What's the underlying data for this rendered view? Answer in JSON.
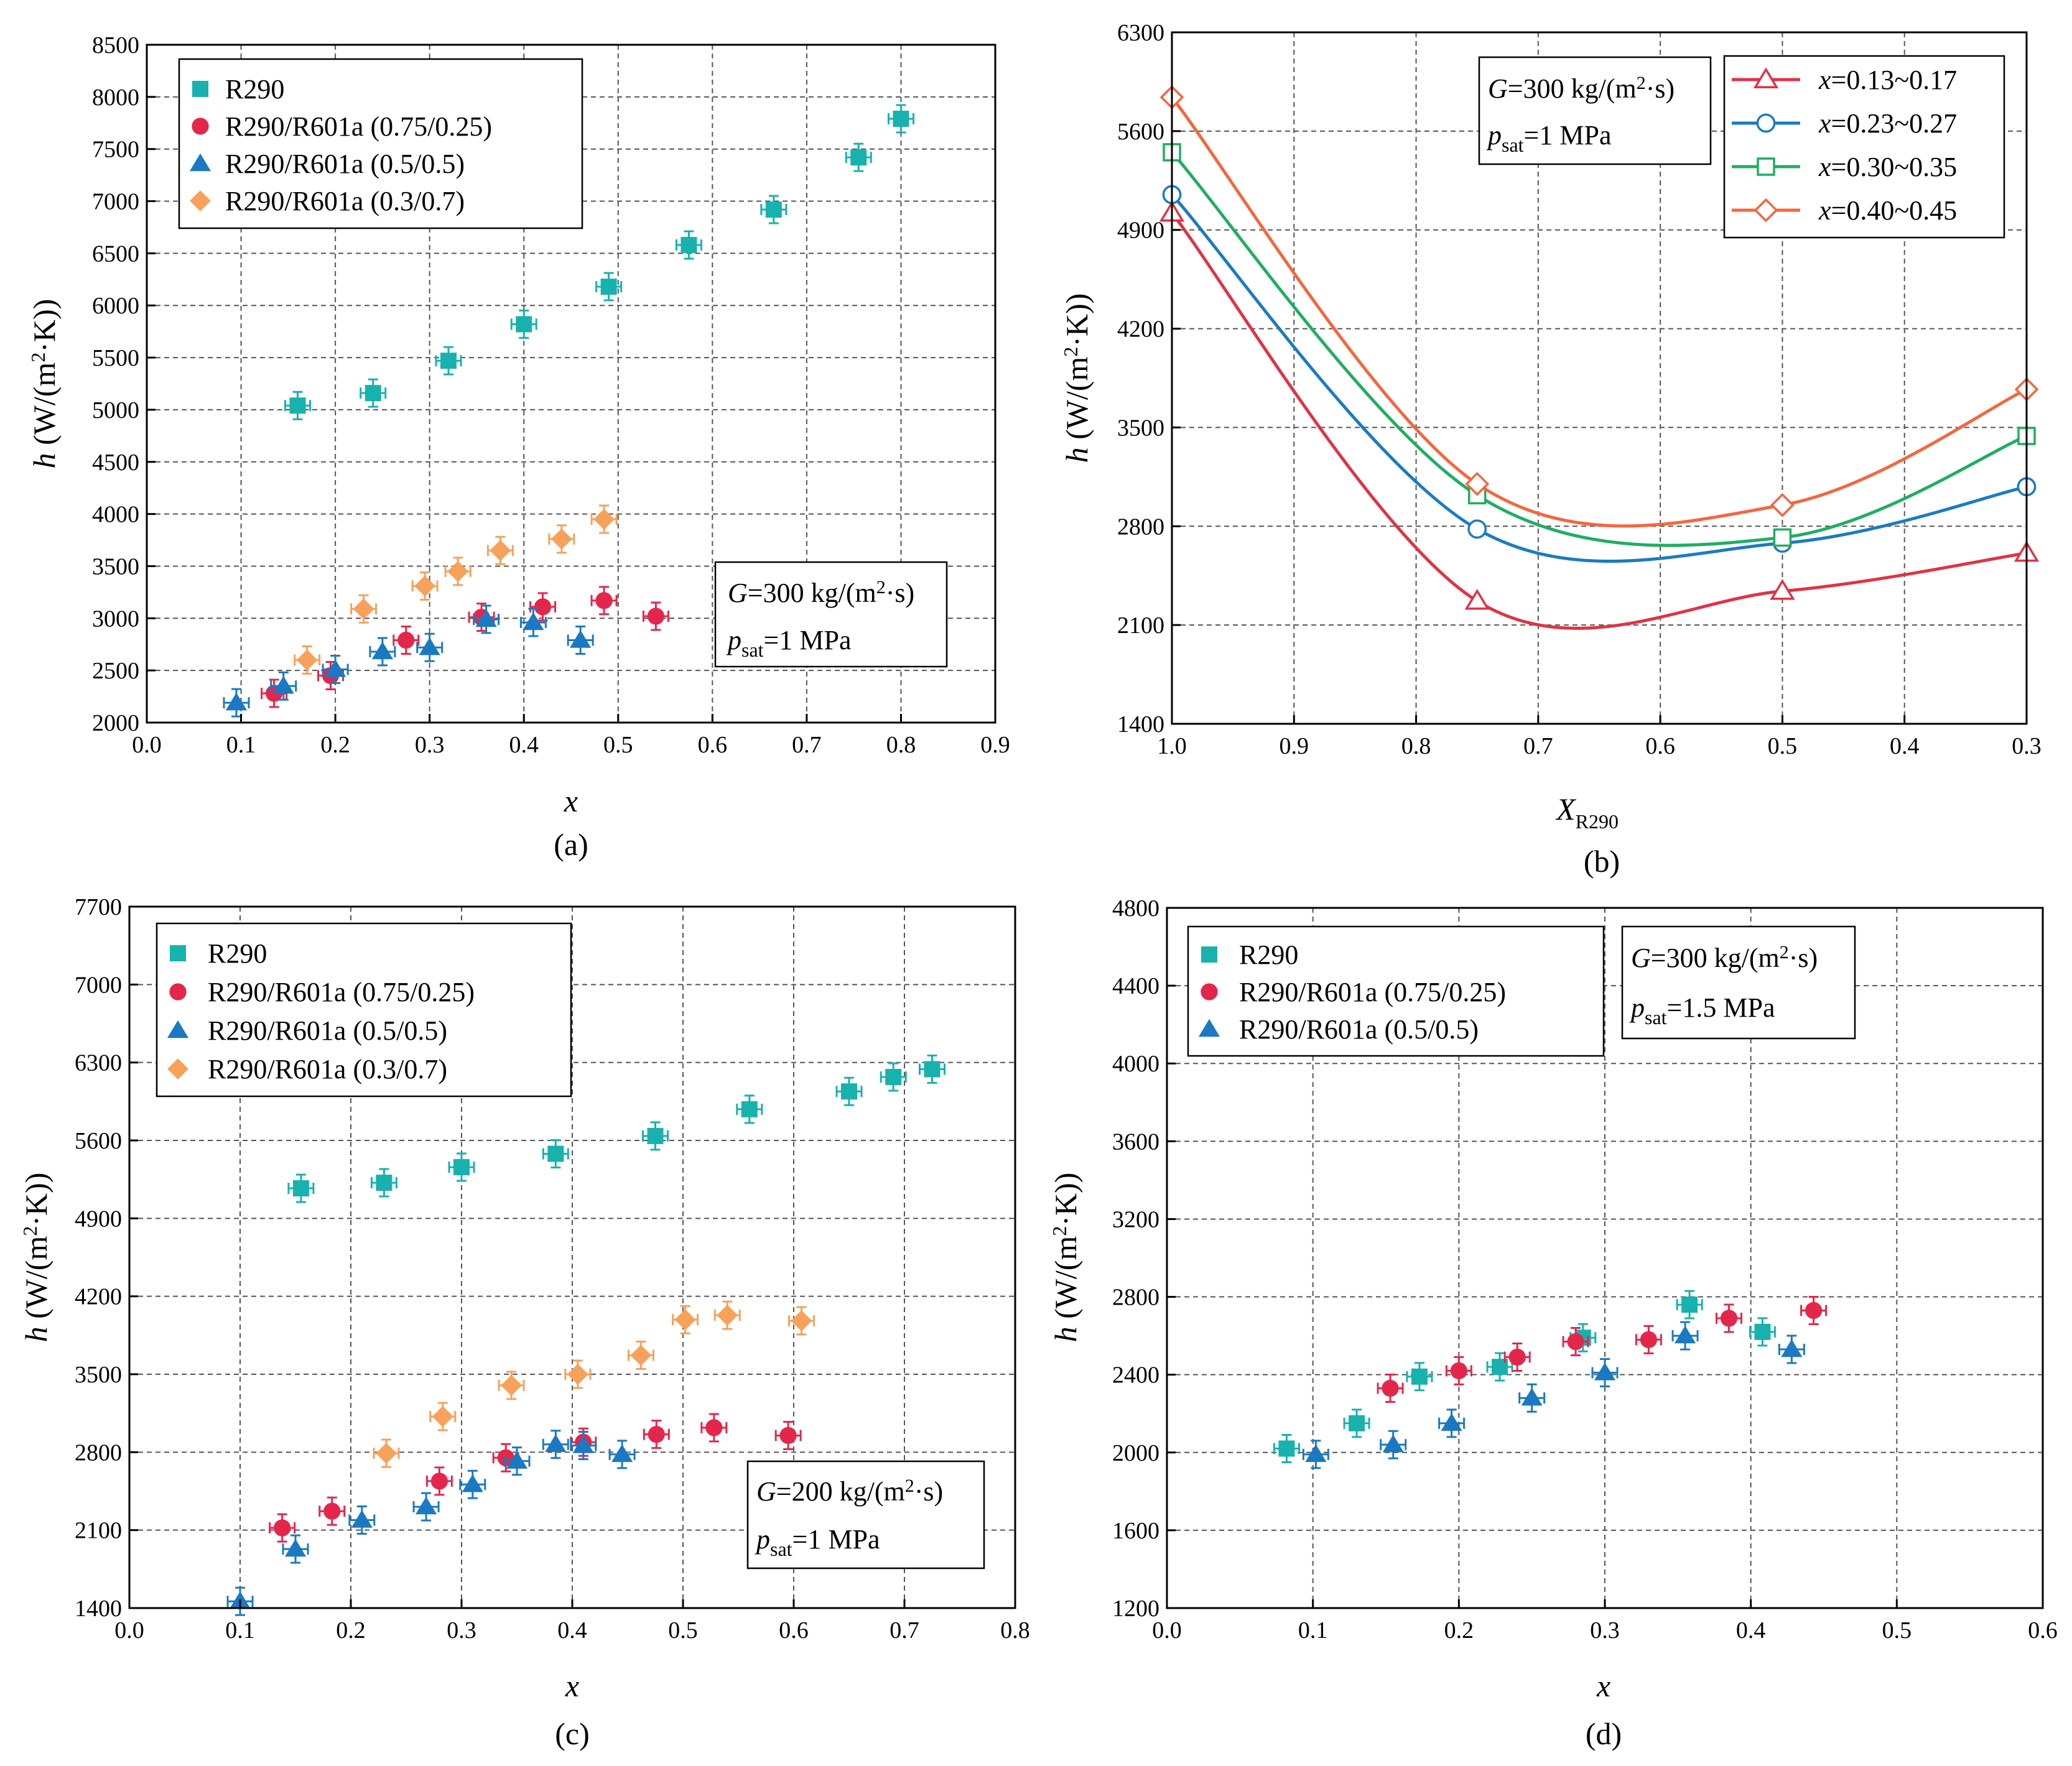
{
  "colors": {
    "R290": "#17b2ad",
    "R290/R601a (0.75/0.25)": "#e5264b",
    "R290/R601a (0.5/0.5)": "#1a79c2",
    "R290/R601a (0.3/0.7)": "#f7a15a",
    "x=0.13~0.17": "#e03246",
    "x=0.23~0.27": "#1a7bc2",
    "x=0.30~0.35": "#1fae61",
    "x=0.40~0.45": "#f5663d"
  },
  "panels": {
    "a": {
      "label": "(a)",
      "xlabel": "x",
      "ylabel": "h (W/(m²·K))",
      "condition": {
        "G": "G=300 kg/(m²·s)",
        "p": "psat=1 MPa"
      },
      "legend": [
        "R290",
        "R290/R601a (0.75/0.25)",
        "R290/R601a (0.5/0.5)",
        "R290/R601a (0.3/0.7)"
      ],
      "xticks": [
        "0.0",
        "0.1",
        "0.2",
        "0.3",
        "0.4",
        "0.5",
        "0.6",
        "0.7",
        "0.8",
        "0.9"
      ],
      "yticks": [
        "2000",
        "2500",
        "3000",
        "3500",
        "4000",
        "4500",
        "5000",
        "5500",
        "6000",
        "6500",
        "7000",
        "7500",
        "8000",
        "8500"
      ]
    },
    "b": {
      "label": "(b)",
      "xlabel": "XR290",
      "ylabel": "h (W/(m²·K))",
      "condition": {
        "G": "G=300 kg/(m²·s)",
        "p": "psat=1 MPa"
      },
      "legend": [
        "x=0.13~0.17",
        "x=0.23~0.27",
        "x=0.30~0.35",
        "x=0.40~0.45"
      ],
      "xticks": [
        "1.0",
        "0.9",
        "0.8",
        "0.7",
        "0.6",
        "0.5",
        "0.4",
        "0.3"
      ],
      "yticks": [
        "1400",
        "2100",
        "2800",
        "3500",
        "4200",
        "4900",
        "5600",
        "6300"
      ]
    },
    "c": {
      "label": "(c)",
      "xlabel": "x",
      "ylabel": "h (W/(m²·K))",
      "condition": {
        "G": "G=200 kg/(m²·s)",
        "p": "psat=1 MPa"
      },
      "legend": [
        "R290",
        "R290/R601a (0.75/0.25)",
        "R290/R601a (0.5/0.5)",
        "R290/R601a (0.3/0.7)"
      ],
      "xticks": [
        "0.0",
        "0.1",
        "0.2",
        "0.3",
        "0.4",
        "0.5",
        "0.6",
        "0.7",
        "0.8"
      ],
      "yticks": [
        "1400",
        "2100",
        "2800",
        "3500",
        "4200",
        "4900",
        "5600",
        "6300",
        "7000",
        "7700"
      ]
    },
    "d": {
      "label": "(d)",
      "xlabel": "x",
      "ylabel": "h (W/(m²·K))",
      "condition": {
        "G": "G=300 kg/(m²·s)",
        "p": "psat=1.5 MPa"
      },
      "legend": [
        "R290",
        "R290/R601a (0.75/0.25)",
        "R290/R601a (0.5/0.5)"
      ],
      "xticks": [
        "0.0",
        "0.1",
        "0.2",
        "0.3",
        "0.4",
        "0.5",
        "0.6"
      ],
      "yticks": [
        "1200",
        "1600",
        "2000",
        "2400",
        "2800",
        "3200",
        "3600",
        "4000",
        "4400",
        "4800"
      ]
    }
  },
  "chart_data": [
    {
      "id": "a",
      "type": "scatter",
      "xlabel": "x",
      "ylabel": "h (W/(m²·K))",
      "xlim": [
        0,
        0.9
      ],
      "ylim": [
        2000,
        8500
      ],
      "series": [
        {
          "name": "R290",
          "marker": "square",
          "points": [
            [
              0.16,
              5040
            ],
            [
              0.24,
              5160
            ],
            [
              0.32,
              5470
            ],
            [
              0.4,
              5820
            ],
            [
              0.49,
              6180
            ],
            [
              0.575,
              6580
            ],
            [
              0.665,
              6920
            ],
            [
              0.755,
              7420
            ],
            [
              0.8,
              7790
            ]
          ]
        },
        {
          "name": "R290/R601a (0.75/0.25)",
          "marker": "circle",
          "points": [
            [
              0.135,
              2280
            ],
            [
              0.195,
              2450
            ],
            [
              0.275,
              2790
            ],
            [
              0.355,
              3010
            ],
            [
              0.42,
              3110
            ],
            [
              0.485,
              3170
            ],
            [
              0.54,
              3020
            ]
          ]
        },
        {
          "name": "R290/R601a (0.5/0.5)",
          "marker": "triangle",
          "points": [
            [
              0.095,
              2190
            ],
            [
              0.145,
              2350
            ],
            [
              0.2,
              2510
            ],
            [
              0.25,
              2680
            ],
            [
              0.3,
              2720
            ],
            [
              0.36,
              2990
            ],
            [
              0.41,
              2960
            ],
            [
              0.46,
              2790
            ]
          ]
        },
        {
          "name": "R290/R601a (0.3/0.7)",
          "marker": "diamond",
          "points": [
            [
              0.17,
              2600
            ],
            [
              0.23,
              3090
            ],
            [
              0.295,
              3310
            ],
            [
              0.33,
              3450
            ],
            [
              0.375,
              3650
            ],
            [
              0.44,
              3760
            ],
            [
              0.485,
              3950
            ]
          ]
        }
      ]
    },
    {
      "id": "b",
      "type": "line",
      "xlabel": "XR290",
      "ylabel": "h (W/(m²·K))",
      "xlim": [
        1.0,
        0.3
      ],
      "ylim": [
        1400,
        6300
      ],
      "series": [
        {
          "name": "x=0.13~0.17",
          "marker": "triangle-open",
          "points": [
            [
              1.0,
              5020
            ],
            [
              0.75,
              2270
            ],
            [
              0.5,
              2340
            ],
            [
              0.3,
              2610
            ]
          ]
        },
        {
          "name": "x=0.23~0.27",
          "marker": "circle-open",
          "points": [
            [
              1.0,
              5150
            ],
            [
              0.75,
              2780
            ],
            [
              0.5,
              2680
            ],
            [
              0.3,
              3080
            ]
          ]
        },
        {
          "name": "x=0.30~0.35",
          "marker": "square-open",
          "points": [
            [
              1.0,
              5450
            ],
            [
              0.75,
              3020
            ],
            [
              0.5,
              2720
            ],
            [
              0.3,
              3440
            ]
          ]
        },
        {
          "name": "x=0.40~0.45",
          "marker": "diamond-open",
          "points": [
            [
              1.0,
              5840
            ],
            [
              0.75,
              3100
            ],
            [
              0.5,
              2950
            ],
            [
              0.3,
              3770
            ]
          ]
        }
      ]
    },
    {
      "id": "c",
      "type": "scatter",
      "xlabel": "x",
      "ylabel": "h (W/(m²·K))",
      "xlim": [
        0,
        0.8
      ],
      "ylim": [
        1400,
        7700
      ],
      "series": [
        {
          "name": "R290",
          "marker": "square",
          "points": [
            [
              0.155,
              5170
            ],
            [
              0.23,
              5220
            ],
            [
              0.3,
              5360
            ],
            [
              0.385,
              5480
            ],
            [
              0.475,
              5640
            ],
            [
              0.56,
              5880
            ],
            [
              0.65,
              6040
            ],
            [
              0.69,
              6170
            ],
            [
              0.725,
              6240
            ]
          ]
        },
        {
          "name": "R290/R601a (0.75/0.25)",
          "marker": "circle",
          "points": [
            [
              0.138,
              2120
            ],
            [
              0.183,
              2270
            ],
            [
              0.28,
              2540
            ],
            [
              0.34,
              2750
            ],
            [
              0.41,
              2890
            ],
            [
              0.476,
              2960
            ],
            [
              0.528,
              3020
            ],
            [
              0.595,
              2950
            ]
          ]
        },
        {
          "name": "R290/R601a (0.5/0.5)",
          "marker": "triangle",
          "points": [
            [
              0.1,
              1460
            ],
            [
              0.15,
              1930
            ],
            [
              0.21,
              2190
            ],
            [
              0.268,
              2310
            ],
            [
              0.31,
              2510
            ],
            [
              0.35,
              2720
            ],
            [
              0.385,
              2870
            ],
            [
              0.41,
              2860
            ],
            [
              0.445,
              2780
            ]
          ]
        },
        {
          "name": "R290/R601a (0.3/0.7)",
          "marker": "diamond",
          "points": [
            [
              0.232,
              2790
            ],
            [
              0.283,
              3120
            ],
            [
              0.345,
              3400
            ],
            [
              0.405,
              3500
            ],
            [
              0.462,
              3670
            ],
            [
              0.502,
              3990
            ],
            [
              0.54,
              4030
            ],
            [
              0.607,
              3980
            ]
          ]
        }
      ]
    },
    {
      "id": "d",
      "type": "scatter",
      "xlabel": "x",
      "ylabel": "h (W/(m²·K))",
      "xlim": [
        0,
        0.6
      ],
      "ylim": [
        1200,
        4800
      ],
      "series": [
        {
          "name": "R290",
          "marker": "square",
          "points": [
            [
              0.082,
              2020
            ],
            [
              0.13,
              2150
            ],
            [
              0.173,
              2390
            ],
            [
              0.228,
              2440
            ],
            [
              0.285,
              2590
            ],
            [
              0.358,
              2760
            ],
            [
              0.408,
              2620
            ]
          ]
        },
        {
          "name": "R290/R601a (0.75/0.25)",
          "marker": "circle",
          "points": [
            [
              0.153,
              2330
            ],
            [
              0.2,
              2420
            ],
            [
              0.24,
              2490
            ],
            [
              0.28,
              2570
            ],
            [
              0.33,
              2580
            ],
            [
              0.385,
              2690
            ],
            [
              0.443,
              2730
            ]
          ]
        },
        {
          "name": "R290/R601a (0.5/0.5)",
          "marker": "triangle",
          "points": [
            [
              0.102,
              1990
            ],
            [
              0.155,
              2040
            ],
            [
              0.195,
              2150
            ],
            [
              0.25,
              2280
            ],
            [
              0.3,
              2410
            ],
            [
              0.355,
              2600
            ],
            [
              0.428,
              2530
            ]
          ]
        }
      ]
    }
  ]
}
